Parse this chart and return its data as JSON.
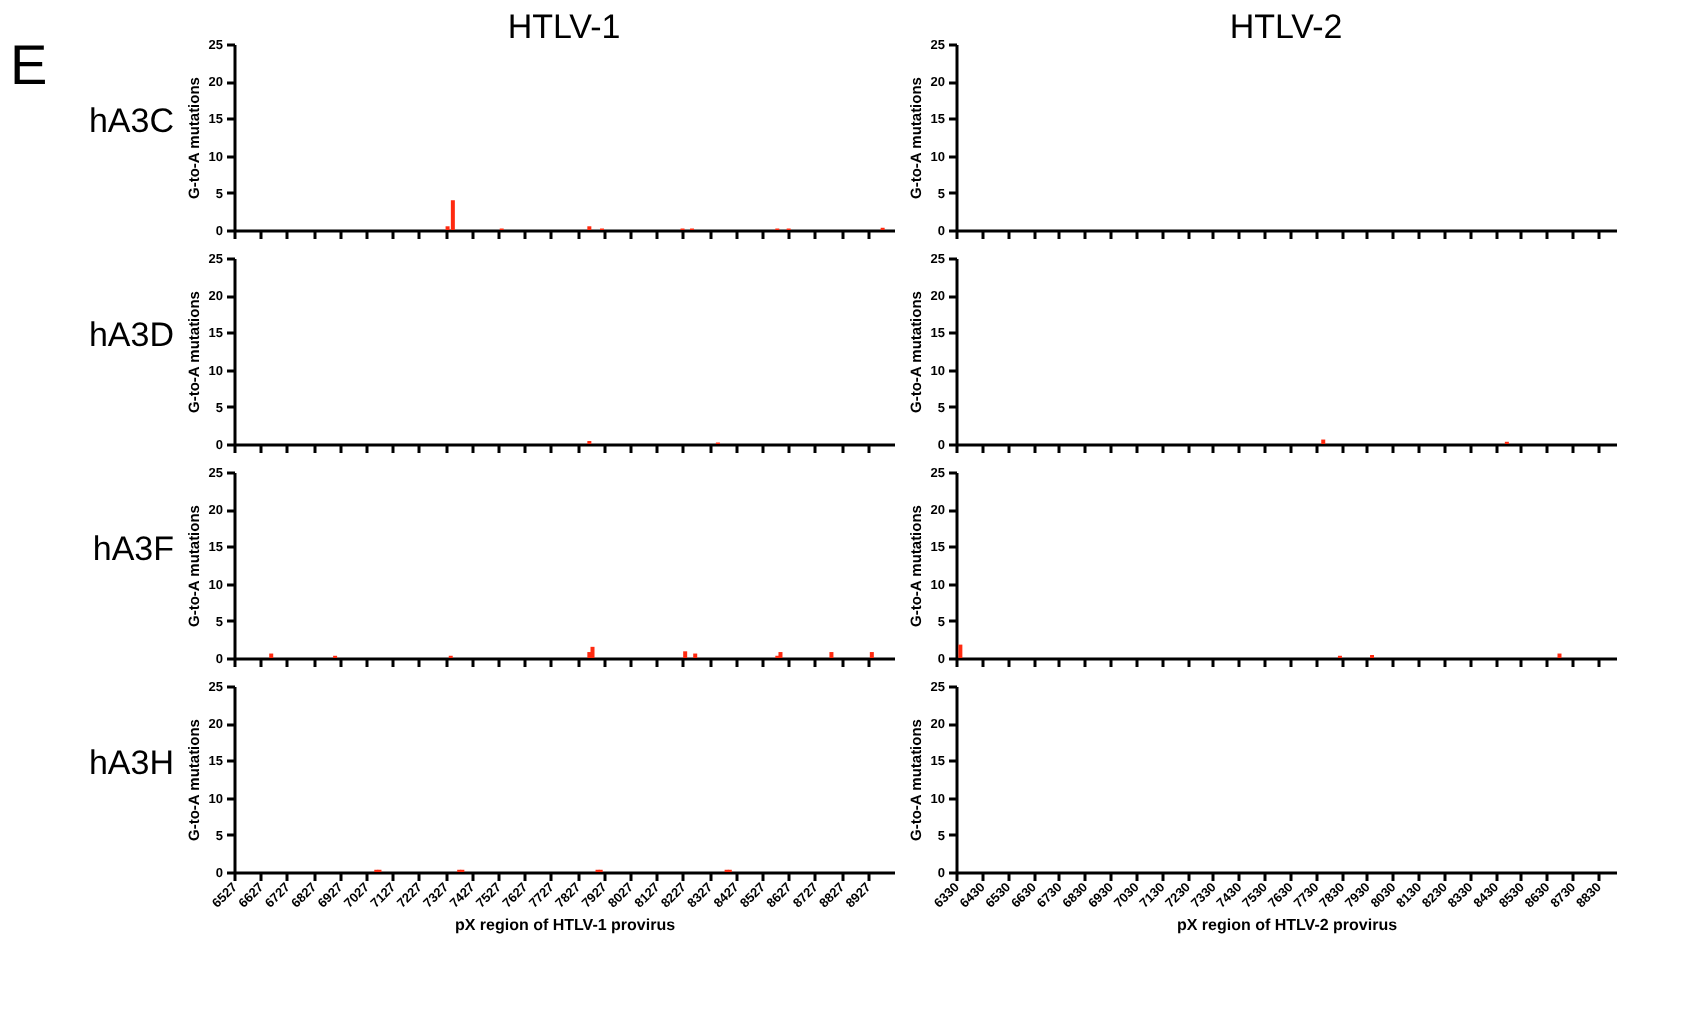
{
  "chart_data": [
    {
      "type": "bar",
      "title": "HTLV-1",
      "ylabel": "G-to-A mutations",
      "annotations": [
        "hA3C",
        "E"
      ],
      "color": "#ff2a10",
      "grid": false,
      "tick_labels": "y",
      "x": [
        7336,
        7356,
        7541,
        7873,
        7921,
        8226,
        8262,
        8585,
        8628,
        8984
      ],
      "values": [
        0.5,
        4,
        0.2,
        0.5,
        0.2,
        0.2,
        0.2,
        0.2,
        0.2,
        0.3
      ],
      "xlim": [
        6527,
        9027
      ],
      "xticks": [
        6527,
        6627,
        6727,
        6827,
        6927,
        7027,
        7127,
        7227,
        7327,
        7427,
        7527,
        7627,
        7727,
        7827,
        7927,
        8027,
        8127,
        8227,
        8327,
        8427,
        8527,
        8627,
        8727,
        8827,
        8927
      ],
      "ylim": [
        0,
        25
      ],
      "yticks": [
        0,
        5,
        10,
        15,
        20,
        25
      ]
    },
    {
      "type": "bar",
      "title": "HTLV-2",
      "ylabel": "G-to-A mutations",
      "color": "#ff2a10",
      "grid": false,
      "tick_labels": "y",
      "xlim": [
        6330,
        8900
      ],
      "xticks": [
        6330,
        6430,
        6530,
        6630,
        6730,
        6830,
        6930,
        7030,
        7130,
        7230,
        7330,
        7430,
        7530,
        7630,
        7730,
        7830,
        7930,
        8030,
        8130,
        8230,
        8330,
        8430,
        8530,
        8630,
        8730,
        8830
      ],
      "ylim": [
        0,
        25
      ],
      "yticks": [
        0,
        5,
        10,
        15,
        20,
        25
      ]
    },
    {
      "type": "bar",
      "ylabel": "G-to-A mutations",
      "annotations": [
        "hA3D"
      ],
      "color": "#ff2a10",
      "grid": false,
      "tick_labels": "y",
      "x": [
        7873,
        8360
      ],
      "values": [
        0.4,
        0.2
      ],
      "xlim": [
        6527,
        9027
      ],
      "xticks": [
        6527,
        6627,
        6727,
        6827,
        6927,
        7027,
        7127,
        7227,
        7327,
        7427,
        7527,
        7627,
        7727,
        7827,
        7927,
        8027,
        8127,
        8227,
        8327,
        8427,
        8527,
        8627,
        8727,
        8827,
        8927
      ],
      "ylim": [
        0,
        25
      ],
      "yticks": [
        0,
        5,
        10,
        15,
        20,
        25
      ]
    },
    {
      "type": "bar",
      "ylabel": "G-to-A mutations",
      "color": "#ff2a10",
      "grid": false,
      "tick_labels": "y",
      "x": [
        7760,
        8475
      ],
      "values": [
        0.6,
        0.3
      ],
      "xlim": [
        6330,
        8900
      ],
      "xticks": [
        6330,
        6430,
        6530,
        6630,
        6730,
        6830,
        6930,
        7030,
        7130,
        7230,
        7330,
        7430,
        7530,
        7630,
        7730,
        7830,
        7930,
        8030,
        8130,
        8230,
        8330,
        8430,
        8530,
        8630,
        8730,
        8830
      ],
      "ylim": [
        0,
        25
      ],
      "yticks": [
        0,
        5,
        10,
        15,
        20,
        25
      ]
    },
    {
      "type": "bar",
      "ylabel": "G-to-A mutations",
      "annotations": [
        "hA3F"
      ],
      "color": "#ff2a10",
      "grid": false,
      "tick_labels": "y",
      "x": [
        6668,
        6910,
        7348,
        7873,
        7885,
        8236,
        8274,
        8585,
        8597,
        8790,
        8943
      ],
      "values": [
        0.6,
        0.3,
        0.3,
        0.8,
        1.5,
        0.9,
        0.6,
        0.3,
        0.8,
        0.8,
        0.8
      ],
      "xlim": [
        6527,
        9027
      ],
      "xticks": [
        6527,
        6627,
        6727,
        6827,
        6927,
        7027,
        7127,
        7227,
        7327,
        7427,
        7527,
        7627,
        7727,
        7827,
        7927,
        8027,
        8127,
        8227,
        8327,
        8427,
        8527,
        8627,
        8727,
        8827,
        8927
      ],
      "ylim": [
        0,
        25
      ],
      "yticks": [
        0,
        5,
        10,
        15,
        20,
        25
      ]
    },
    {
      "type": "bar",
      "ylabel": "G-to-A mutations",
      "color": "#ff2a10",
      "grid": false,
      "tick_labels": "y",
      "x": [
        6347,
        7825,
        7950,
        8680
      ],
      "values": [
        1.8,
        0.3,
        0.4,
        0.6
      ],
      "xlim": [
        6330,
        8900
      ],
      "xticks": [
        6330,
        6430,
        6530,
        6630,
        6730,
        6830,
        6930,
        7030,
        7130,
        7230,
        7330,
        7430,
        7530,
        7630,
        7730,
        7830,
        7930,
        8030,
        8130,
        8230,
        8330,
        8430,
        8530,
        8630,
        8730,
        8830
      ],
      "ylim": [
        0,
        25
      ],
      "yticks": [
        0,
        5,
        10,
        15,
        20,
        25
      ]
    },
    {
      "type": "bar",
      "ylabel": "G-to-A mutations",
      "xlabel": "pX region of HTLV-1 provirus",
      "annotations": [
        "hA3H"
      ],
      "color": "#ff2a10",
      "grid": false,
      "x": [
        7066,
        7078,
        7380,
        7392,
        7904,
        7916,
        8393,
        8405
      ],
      "values": [
        0.3,
        0.3,
        0.3,
        0.3,
        0.3,
        0.3,
        0.3,
        0.3
      ],
      "xlim": [
        6527,
        9027
      ],
      "xticks": [
        6527,
        6627,
        6727,
        6827,
        6927,
        7027,
        7127,
        7227,
        7327,
        7427,
        7527,
        7627,
        7727,
        7827,
        7927,
        8027,
        8127,
        8227,
        8327,
        8427,
        8527,
        8627,
        8727,
        8827,
        8927
      ],
      "ylim": [
        0,
        25
      ],
      "yticks": [
        0,
        5,
        10,
        15,
        20,
        25
      ]
    },
    {
      "type": "bar",
      "ylabel": "G-to-A mutations",
      "xlabel": "pX region of HTLV-2 provirus",
      "color": "#ff2a10",
      "grid": false,
      "xlim": [
        6330,
        8900
      ],
      "xticks": [
        6330,
        6430,
        6530,
        6630,
        6730,
        6830,
        6930,
        7030,
        7130,
        7230,
        7330,
        7430,
        7530,
        7630,
        7730,
        7830,
        7930,
        8030,
        8130,
        8230,
        8330,
        8430,
        8530,
        8630,
        8730,
        8830
      ],
      "ylim": [
        0,
        25
      ],
      "yticks": [
        0,
        5,
        10,
        15,
        20,
        25
      ]
    }
  ]
}
